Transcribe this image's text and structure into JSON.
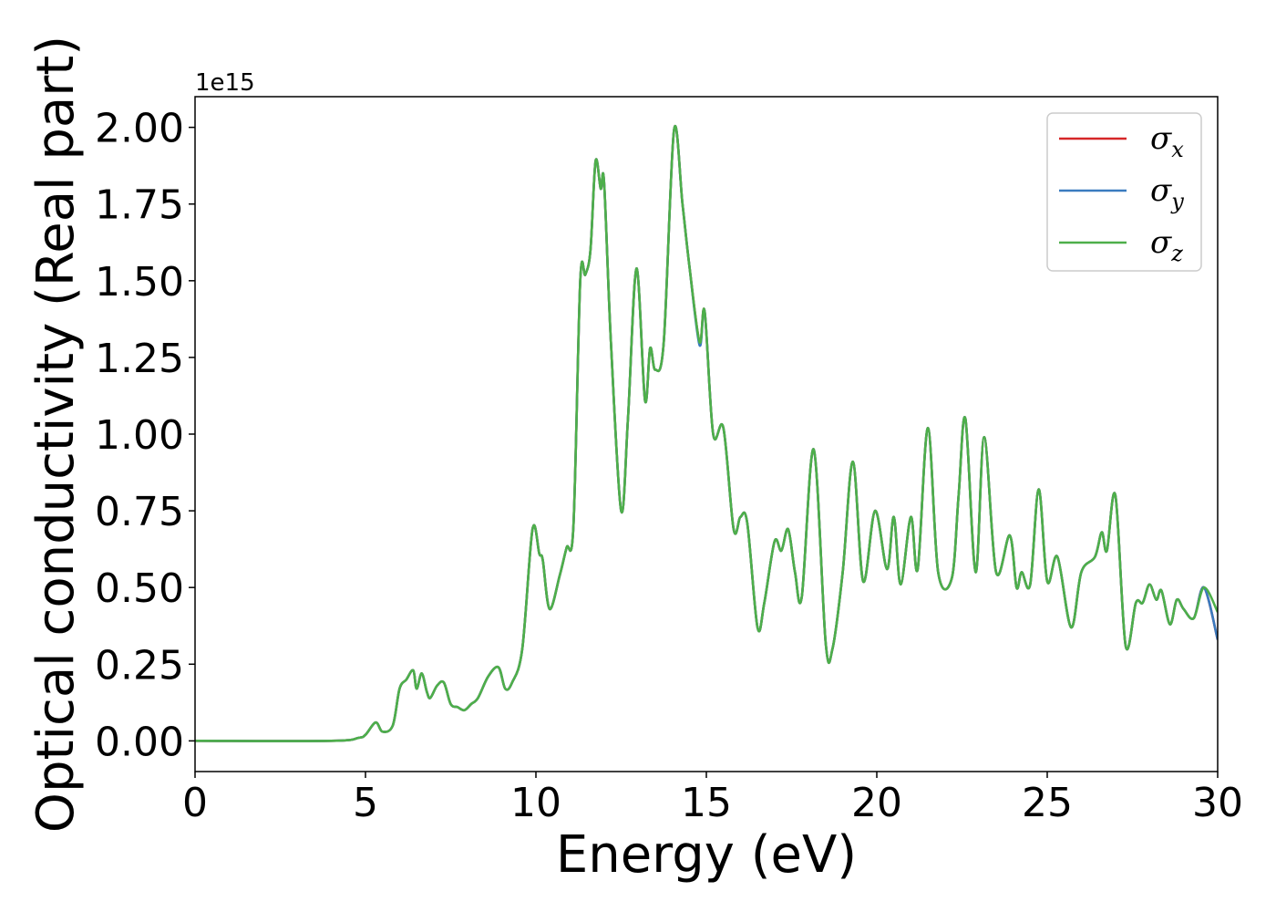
{
  "chart_data": {
    "type": "line",
    "title": "",
    "xlabel": "Energy (eV)",
    "ylabel": "Optical conductivity (Real part)",
    "y_offset_label": "1e15",
    "xlim": [
      0,
      30
    ],
    "ylim": [
      -0.1,
      2.1
    ],
    "x_ticks": [
      0,
      5,
      10,
      15,
      20,
      25,
      30
    ],
    "x_tick_labels": [
      "0",
      "5",
      "10",
      "15",
      "20",
      "25",
      "30"
    ],
    "y_ticks": [
      0,
      0.25,
      0.5,
      0.75,
      1.0,
      1.25,
      1.5,
      1.75,
      2.0
    ],
    "y_tick_labels": [
      "0.00",
      "0.25",
      "0.50",
      "0.75",
      "1.00",
      "1.25",
      "1.50",
      "1.75",
      "2.00"
    ],
    "grid": false,
    "legend_position": "top-right",
    "legend": [
      {
        "symbol": "σ",
        "sub": "x",
        "color": "#d62728"
      },
      {
        "symbol": "σ",
        "sub": "y",
        "color": "#3a7bbf"
      },
      {
        "symbol": "σ",
        "sub": "z",
        "color": "#4daf4a"
      }
    ],
    "x": [
      0,
      4.0,
      4.8,
      5.0,
      5.3,
      5.5,
      5.8,
      6.0,
      6.2,
      6.4,
      6.5,
      6.65,
      6.8,
      6.9,
      7.1,
      7.3,
      7.5,
      7.7,
      7.9,
      8.1,
      8.3,
      8.6,
      8.9,
      9.1,
      9.3,
      9.6,
      9.9,
      10.1,
      10.2,
      10.4,
      10.7,
      10.9,
      11.1,
      11.3,
      11.45,
      11.6,
      11.75,
      11.9,
      12.0,
      12.2,
      12.5,
      12.7,
      12.95,
      13.2,
      13.35,
      13.5,
      13.75,
      14.05,
      14.3,
      14.5,
      14.8,
      14.95,
      15.2,
      15.5,
      15.8,
      16.0,
      16.2,
      16.5,
      16.7,
      17.0,
      17.2,
      17.4,
      17.6,
      17.8,
      18.15,
      18.5,
      18.7,
      19.0,
      19.3,
      19.6,
      19.95,
      20.3,
      20.5,
      20.7,
      21.0,
      21.2,
      21.5,
      21.8,
      22.2,
      22.4,
      22.6,
      22.9,
      23.15,
      23.5,
      23.9,
      24.1,
      24.25,
      24.5,
      24.75,
      25.0,
      25.3,
      25.7,
      26.0,
      26.4,
      26.6,
      26.75,
      27.0,
      27.3,
      27.6,
      27.8,
      28.0,
      28.2,
      28.35,
      28.6,
      28.8,
      29.0,
      29.3,
      29.6,
      30.0
    ],
    "series": [
      {
        "color": "#d62728",
        "values": [
          0,
          0.0,
          0.01,
          0.02,
          0.06,
          0.03,
          0.05,
          0.17,
          0.2,
          0.23,
          0.17,
          0.22,
          0.16,
          0.14,
          0.18,
          0.19,
          0.12,
          0.11,
          0.1,
          0.12,
          0.14,
          0.21,
          0.24,
          0.17,
          0.19,
          0.3,
          0.69,
          0.61,
          0.59,
          0.43,
          0.54,
          0.63,
          0.7,
          1.5,
          1.52,
          1.6,
          1.89,
          1.8,
          1.82,
          1.3,
          0.75,
          1.05,
          1.54,
          1.11,
          1.28,
          1.21,
          1.3,
          1.99,
          1.75,
          1.55,
          1.3,
          1.4,
          1.0,
          1.02,
          0.69,
          0.73,
          0.71,
          0.37,
          0.45,
          0.65,
          0.62,
          0.69,
          0.55,
          0.47,
          0.95,
          0.32,
          0.3,
          0.55,
          0.91,
          0.52,
          0.75,
          0.56,
          0.73,
          0.51,
          0.73,
          0.56,
          1.02,
          0.55,
          0.53,
          0.8,
          1.05,
          0.55,
          0.99,
          0.55,
          0.67,
          0.5,
          0.55,
          0.51,
          0.82,
          0.52,
          0.6,
          0.37,
          0.55,
          0.6,
          0.68,
          0.62,
          0.8,
          0.31,
          0.45,
          0.45,
          0.51,
          0.46,
          0.49,
          0.38,
          0.46,
          0.43,
          0.4,
          0.5,
          0.33
        ]
      },
      {
        "color": "#3a7bbf",
        "values": [
          0,
          0.0,
          0.01,
          0.02,
          0.06,
          0.03,
          0.05,
          0.17,
          0.2,
          0.23,
          0.17,
          0.22,
          0.16,
          0.14,
          0.18,
          0.19,
          0.12,
          0.11,
          0.1,
          0.12,
          0.14,
          0.21,
          0.24,
          0.17,
          0.19,
          0.3,
          0.69,
          0.61,
          0.59,
          0.43,
          0.54,
          0.63,
          0.7,
          1.5,
          1.52,
          1.6,
          1.89,
          1.8,
          1.82,
          1.3,
          0.75,
          1.05,
          1.54,
          1.11,
          1.28,
          1.21,
          1.3,
          1.99,
          1.75,
          1.55,
          1.29,
          1.4,
          1.0,
          1.02,
          0.69,
          0.73,
          0.71,
          0.37,
          0.45,
          0.65,
          0.62,
          0.69,
          0.55,
          0.47,
          0.95,
          0.32,
          0.3,
          0.55,
          0.91,
          0.52,
          0.75,
          0.56,
          0.73,
          0.51,
          0.73,
          0.56,
          1.02,
          0.55,
          0.53,
          0.8,
          1.05,
          0.55,
          0.99,
          0.55,
          0.67,
          0.5,
          0.55,
          0.51,
          0.82,
          0.52,
          0.6,
          0.37,
          0.55,
          0.6,
          0.68,
          0.62,
          0.8,
          0.31,
          0.45,
          0.45,
          0.51,
          0.46,
          0.49,
          0.38,
          0.46,
          0.43,
          0.4,
          0.5,
          0.33
        ]
      },
      {
        "color": "#4daf4a",
        "values": [
          0,
          0.0,
          0.01,
          0.02,
          0.06,
          0.03,
          0.05,
          0.17,
          0.2,
          0.23,
          0.17,
          0.22,
          0.16,
          0.14,
          0.18,
          0.19,
          0.12,
          0.11,
          0.1,
          0.12,
          0.14,
          0.21,
          0.24,
          0.17,
          0.19,
          0.3,
          0.69,
          0.61,
          0.59,
          0.43,
          0.54,
          0.63,
          0.7,
          1.5,
          1.52,
          1.6,
          1.89,
          1.8,
          1.82,
          1.3,
          0.75,
          1.05,
          1.54,
          1.11,
          1.28,
          1.21,
          1.3,
          1.99,
          1.75,
          1.55,
          1.3,
          1.4,
          1.0,
          1.02,
          0.69,
          0.73,
          0.71,
          0.37,
          0.45,
          0.65,
          0.62,
          0.69,
          0.55,
          0.47,
          0.95,
          0.32,
          0.3,
          0.55,
          0.91,
          0.52,
          0.75,
          0.56,
          0.73,
          0.51,
          0.73,
          0.56,
          1.02,
          0.55,
          0.53,
          0.8,
          1.05,
          0.55,
          0.99,
          0.55,
          0.67,
          0.5,
          0.55,
          0.51,
          0.82,
          0.52,
          0.6,
          0.37,
          0.55,
          0.6,
          0.68,
          0.62,
          0.8,
          0.31,
          0.45,
          0.45,
          0.51,
          0.46,
          0.49,
          0.38,
          0.46,
          0.43,
          0.4,
          0.5,
          0.42
        ]
      }
    ]
  }
}
